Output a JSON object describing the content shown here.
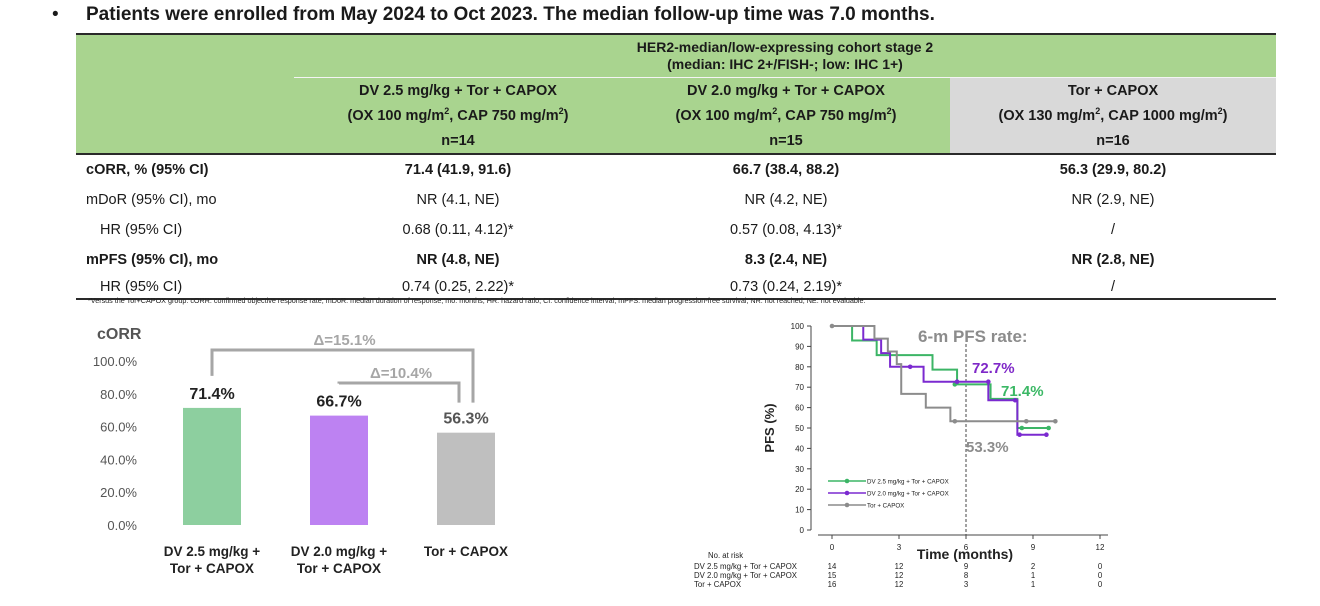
{
  "header": {
    "bullet": "•",
    "text": "Patients were enrolled from May 2024 to Oct 2023. The median follow-up time was 7.0 months."
  },
  "table": {
    "cohort_title": "HER2-median/low-expressing cohort stage 2",
    "cohort_subtitle": "(median: IHC 2+/FISH-; low: IHC 1+)",
    "arms": [
      {
        "name": "DV 2.5 mg/kg + Tor + CAPOX",
        "dose_prefix": "(OX 100 mg/m",
        "dose_mid": ", CAP 750 mg/m",
        "dose_suffix": ")",
        "sup": "2",
        "n": "n=14"
      },
      {
        "name": "DV 2.0 mg/kg + Tor + CAPOX",
        "dose_prefix": "(OX 100 mg/m",
        "dose_mid": ", CAP 750 mg/m",
        "dose_suffix": ")",
        "sup": "2",
        "n": "n=15"
      },
      {
        "name": "Tor + CAPOX",
        "dose_prefix": "(OX 130 mg/m",
        "dose_mid": ", CAP 1000 mg/m",
        "dose_suffix": ")",
        "sup": "2",
        "n": "n=16"
      }
    ],
    "rows": [
      {
        "label": "cORR, % (95% CI)",
        "values": [
          "71.4 (41.9, 91.6)",
          "66.7 (38.4, 88.2)",
          "56.3 (29.9, 80.2)"
        ]
      },
      {
        "label": "mDoR (95% CI), mo",
        "values": [
          "NR (4.1, NE)",
          "NR (4.2, NE)",
          "NR (2.9, NE)"
        ]
      },
      {
        "label": "HR (95% CI)",
        "values": [
          "0.68 (0.11, 4.12)*",
          "0.57 (0.08, 4.13)*",
          "/"
        ]
      },
      {
        "label": "mPFS (95% CI), mo",
        "values": [
          "NR (4.8, NE)",
          "8.3 (2.4, NE)",
          "NR (2.8, NE)"
        ]
      },
      {
        "label": "HR (95% CI)",
        "values": [
          "0.74 (0.25, 2.22)*",
          "0.73 (0.24, 2.19)*",
          "/"
        ]
      }
    ],
    "footnote": "*Versus the Tor+CAPOX group. cORR: confirmed objective response rate; mDoR: median duration of response; mo: months; HR: hazard ratio; CI: confidence interval; mPFS: median progression-free survival; NR: not reached; NE: not evaluable."
  },
  "chart_data": [
    {
      "type": "bar",
      "title": "cORR",
      "categories": [
        [
          "DV 2.5 mg/kg +",
          "Tor + CAPOX"
        ],
        [
          "DV 2.0 mg/kg +",
          "Tor + CAPOX"
        ],
        [
          "Tor + CAPOX"
        ]
      ],
      "values": [
        71.4,
        66.7,
        56.3
      ],
      "value_labels": [
        "71.4%",
        "66.7%",
        "56.3%"
      ],
      "colors": [
        "#8dcf9f",
        "#bd82f2",
        "#bfbfbf"
      ],
      "ylim": [
        0,
        100
      ],
      "yticks": [
        "100.0%",
        "80.0%",
        "60.0%",
        "40.0%",
        "20.0%",
        "0.0%"
      ],
      "ytick_values": [
        100,
        80,
        60,
        40,
        20,
        0
      ],
      "annotations": [
        {
          "text": "Δ=15.1%",
          "from": 0,
          "to": 2
        },
        {
          "text": "Δ=10.4%",
          "from": 1,
          "to": 2
        }
      ],
      "annotation_color": "#a6a6a6"
    },
    {
      "type": "line",
      "ylabel": "PFS (%)",
      "xlabel": "Time (months)",
      "xlim": [
        0,
        12
      ],
      "ylim": [
        0,
        100
      ],
      "xticks": [
        0,
        3,
        6,
        9,
        12
      ],
      "yticks": [
        0,
        10,
        20,
        30,
        40,
        50,
        60,
        70,
        80,
        90,
        100
      ],
      "rate_title": "6-m PFS rate:",
      "rate_labels": [
        {
          "text": "72.7%",
          "series": 1,
          "color": "#7f28c8"
        },
        {
          "text": "71.4%",
          "series": 0,
          "color": "#3bb865"
        },
        {
          "text": "53.3%",
          "series": 2,
          "color": "#8c8c8c"
        }
      ],
      "vline_x": 6,
      "series": [
        {
          "name": "DV 2.5 mg/kg + Tor + CAPOX",
          "color": "#3cb566",
          "steps": [
            [
              0,
              100
            ],
            [
              0.9,
              92.9
            ],
            [
              2.0,
              85.7
            ],
            [
              4.5,
              78.6
            ],
            [
              5.6,
              71.4
            ],
            [
              7.1,
              64.3
            ],
            [
              8.3,
              50.0
            ],
            [
              9.7,
              50.0
            ]
          ],
          "censor": [
            [
              5.5,
              71.4
            ],
            [
              8.5,
              50.0
            ],
            [
              9.7,
              50.0
            ]
          ]
        },
        {
          "name": "DV 2.0 mg/kg + Tor + CAPOX",
          "color": "#7b2ad0",
          "steps": [
            [
              0,
              100
            ],
            [
              1.4,
              93.3
            ],
            [
              2.2,
              86.7
            ],
            [
              2.6,
              80.0
            ],
            [
              4.1,
              72.7
            ],
            [
              7.0,
              63.6
            ],
            [
              8.3,
              46.7
            ],
            [
              9.6,
              46.7
            ]
          ],
          "censor": [
            [
              3.5,
              80.0
            ],
            [
              5.6,
              72.7
            ],
            [
              7.0,
              72.7
            ],
            [
              8.2,
              63.6
            ],
            [
              8.4,
              46.7
            ],
            [
              9.6,
              46.7
            ]
          ]
        },
        {
          "name": "Tor + CAPOX",
          "color": "#8c8c8c",
          "steps": [
            [
              0,
              100
            ],
            [
              1.9,
              93.8
            ],
            [
              2.5,
              87.5
            ],
            [
              2.9,
              81.3
            ],
            [
              3.1,
              66.7
            ],
            [
              4.2,
              60.0
            ],
            [
              5.3,
              53.3
            ],
            [
              10.0,
              53.3
            ]
          ],
          "censor": [
            [
              0,
              100
            ],
            [
              5.5,
              53.3
            ],
            [
              8.7,
              53.3
            ],
            [
              10.0,
              53.3
            ]
          ]
        }
      ],
      "risk_table": {
        "title": "No. at risk",
        "rows": [
          {
            "label": "DV 2.5 mg/kg + Tor + CAPOX",
            "values": [
              "14",
              "12",
              "9",
              "2",
              "0"
            ]
          },
          {
            "label": "DV 2.0 mg/kg + Tor + CAPOX",
            "values": [
              "15",
              "12",
              "8",
              "1",
              "0"
            ]
          },
          {
            "label": "Tor + CAPOX",
            "values": [
              "16",
              "12",
              "3",
              "1",
              "0"
            ]
          }
        ]
      }
    }
  ]
}
